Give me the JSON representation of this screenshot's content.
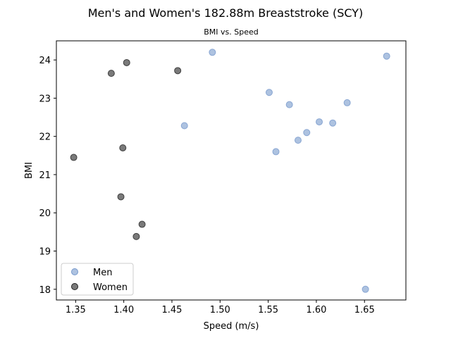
{
  "chart_data": {
    "type": "scatter",
    "title": "Men's and Women's 182.88m Breaststroke (SCY)",
    "subtitle": "BMI vs. Speed",
    "xlabel": "Speed (m/s)",
    "ylabel": "BMI",
    "xlim": [
      1.33,
      1.693
    ],
    "ylim": [
      17.72,
      24.5
    ],
    "xticks": [
      1.35,
      1.4,
      1.45,
      1.5,
      1.55,
      1.6,
      1.65
    ],
    "xtick_labels": [
      "1.35",
      "1.40",
      "1.45",
      "1.50",
      "1.55",
      "1.60",
      "1.65"
    ],
    "yticks": [
      18,
      19,
      20,
      21,
      22,
      23,
      24
    ],
    "ytick_labels": [
      "18",
      "19",
      "20",
      "21",
      "22",
      "23",
      "24"
    ],
    "grid": false,
    "legend_position": "lower-left",
    "series": [
      {
        "name": "Men",
        "color": "#7799cc",
        "points": [
          {
            "x": 1.492,
            "y": 24.2
          },
          {
            "x": 1.673,
            "y": 24.1
          },
          {
            "x": 1.551,
            "y": 23.15
          },
          {
            "x": 1.572,
            "y": 22.83
          },
          {
            "x": 1.632,
            "y": 22.88
          },
          {
            "x": 1.603,
            "y": 22.38
          },
          {
            "x": 1.617,
            "y": 22.35
          },
          {
            "x": 1.463,
            "y": 22.28
          },
          {
            "x": 1.59,
            "y": 22.1
          },
          {
            "x": 1.581,
            "y": 21.9
          },
          {
            "x": 1.558,
            "y": 21.6
          },
          {
            "x": 1.651,
            "y": 18.0
          }
        ]
      },
      {
        "name": "Women",
        "color": "#222222",
        "points": [
          {
            "x": 1.403,
            "y": 23.93
          },
          {
            "x": 1.387,
            "y": 23.65
          },
          {
            "x": 1.456,
            "y": 23.72
          },
          {
            "x": 1.399,
            "y": 21.7
          },
          {
            "x": 1.348,
            "y": 21.45
          },
          {
            "x": 1.397,
            "y": 20.42
          },
          {
            "x": 1.419,
            "y": 19.7
          },
          {
            "x": 1.413,
            "y": 19.38
          }
        ]
      }
    ]
  }
}
